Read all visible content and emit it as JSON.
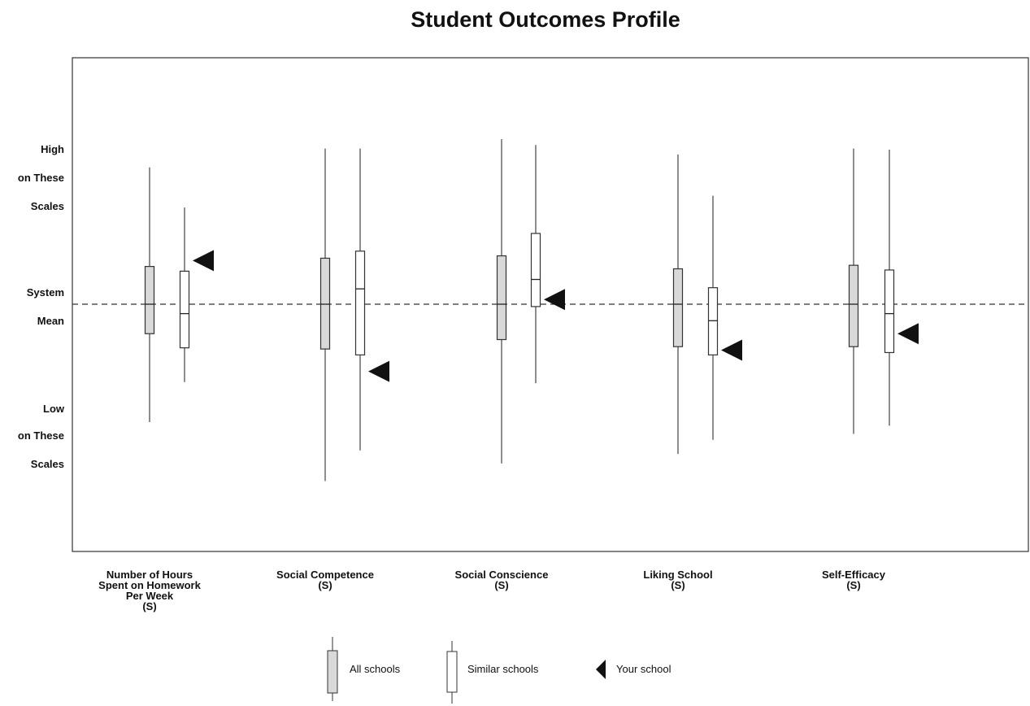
{
  "chart_data": {
    "type": "boxplot",
    "title": "Student Outcomes Profile",
    "y_axis": {
      "high_label": [
        "High",
        "on These",
        "Scales"
      ],
      "mean_label": [
        "System",
        "Mean"
      ],
      "low_label": [
        "Low",
        "on These",
        "Scales"
      ],
      "ylim": [
        -2.1,
        2.1
      ],
      "reference_line": {
        "label": "System Mean",
        "value": 0,
        "style": "dashed"
      }
    },
    "categories": [
      {
        "label_lines": [
          "Number of Hours",
          "Spent on Homework",
          "Per Week",
          "(S)"
        ]
      },
      {
        "label_lines": [
          "Social Competence",
          "(S)"
        ]
      },
      {
        "label_lines": [
          "Social Conscience",
          "(S)"
        ]
      },
      {
        "label_lines": [
          "Liking School",
          "(S)"
        ]
      },
      {
        "label_lines": [
          "Self-Efficacy",
          "(S)"
        ]
      }
    ],
    "series": [
      {
        "name": "All schools",
        "fill": "#d9d9d9",
        "boxes": [
          {
            "whisker_low": -1.0,
            "q1": -0.25,
            "median": 0.0,
            "q3": 0.32,
            "whisker_high": 1.16
          },
          {
            "whisker_low": -1.5,
            "q1": -0.38,
            "median": 0.0,
            "q3": 0.39,
            "whisker_high": 1.32
          },
          {
            "whisker_low": -1.35,
            "q1": -0.3,
            "median": 0.0,
            "q3": 0.41,
            "whisker_high": 1.4
          },
          {
            "whisker_low": -1.27,
            "q1": -0.36,
            "median": 0.0,
            "q3": 0.3,
            "whisker_high": 1.27
          },
          {
            "whisker_low": -1.1,
            "q1": -0.36,
            "median": 0.0,
            "q3": 0.33,
            "whisker_high": 1.32
          }
        ]
      },
      {
        "name": "Similar schools",
        "fill": "#ffffff",
        "boxes": [
          {
            "whisker_low": -0.66,
            "q1": -0.37,
            "median": -0.08,
            "q3": 0.28,
            "whisker_high": 0.82
          },
          {
            "whisker_low": -1.24,
            "q1": -0.43,
            "median": 0.13,
            "q3": 0.45,
            "whisker_high": 1.32
          },
          {
            "whisker_low": -0.67,
            "q1": -0.02,
            "median": 0.21,
            "q3": 0.6,
            "whisker_high": 1.35
          },
          {
            "whisker_low": -1.15,
            "q1": -0.43,
            "median": -0.14,
            "q3": 0.14,
            "whisker_high": 0.92
          },
          {
            "whisker_low": -1.03,
            "q1": -0.41,
            "median": -0.08,
            "q3": 0.29,
            "whisker_high": 1.31
          }
        ]
      },
      {
        "name": "Your school",
        "marker": "triangle",
        "values": [
          0.37,
          -0.57,
          0.04,
          -0.39,
          -0.25
        ]
      }
    ]
  },
  "legend": {
    "items": [
      {
        "label": "All schools"
      },
      {
        "label": "Similar schools"
      },
      {
        "label": "Your school"
      }
    ]
  }
}
